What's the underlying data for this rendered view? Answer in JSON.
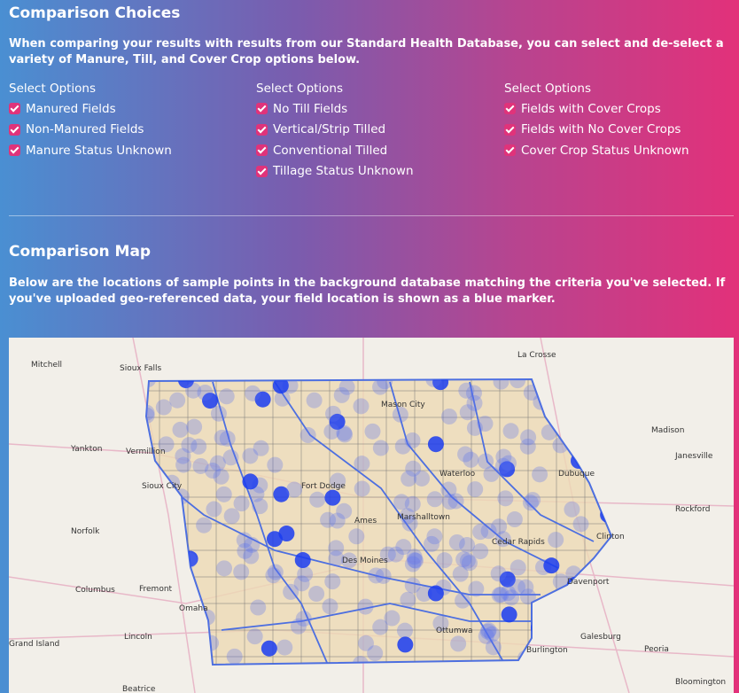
{
  "comparison_choices": {
    "title": "Comparison Choices",
    "description": "When comparing your results with results from our Standard Health Database, you can select and de-select a variety of Manure, Till, and Cover Crop options below.",
    "columns": [
      {
        "heading": "Select Options",
        "options": [
          "Manured Fields",
          "Non-Manured Fields",
          "Manure Status Unknown"
        ]
      },
      {
        "heading": "Select Options",
        "options": [
          "No Till Fields",
          "Vertical/Strip Tilled",
          "Conventional Tilled",
          "Tillage Status Unknown"
        ]
      },
      {
        "heading": "Select Options",
        "options": [
          "Fields with Cover Crops",
          "Fields with No Cover Crops",
          "Cover Crop Status Unknown"
        ]
      }
    ]
  },
  "comparison_map": {
    "title": "Comparison Map",
    "description": "Below are the locations of sample points in the background database matching the criteria you've selected. If you've uploaded geo-referenced data, your field location is shown as a blue marker.",
    "places": [
      "Mitchell",
      "Sioux Falls",
      "La Crosse",
      "Mason City",
      "Madison",
      "Yankton",
      "Vermillion",
      "Janesville",
      "Waterloo",
      "Dubuque",
      "Sioux City",
      "Fort Dodge",
      "Rockford",
      "Norfolk",
      "Ames",
      "Marshalltown",
      "Cedar Rapids",
      "Clinton",
      "Des Moines",
      "Davenport",
      "Columbus",
      "Fremont",
      "Omaha",
      "Lincoln",
      "Ottumwa",
      "Galesburg",
      "Grand Island",
      "Peoria",
      "Burlington",
      "Bloomington",
      "Beatrice"
    ]
  }
}
